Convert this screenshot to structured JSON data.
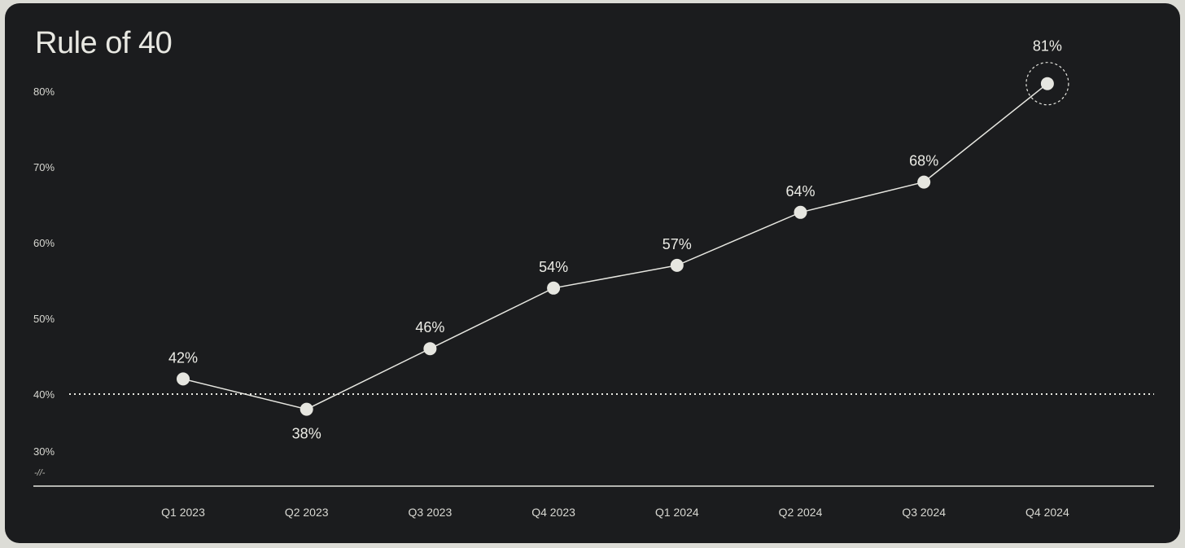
{
  "title": "Rule of 40",
  "chart_data": {
    "type": "line",
    "title": "Rule of 40",
    "xlabel": "",
    "ylabel": "",
    "categories": [
      "Q1 2023",
      "Q2 2023",
      "Q3 2023",
      "Q4 2023",
      "Q1 2024",
      "Q2 2024",
      "Q3 2024",
      "Q4 2024"
    ],
    "values": [
      42,
      38,
      46,
      54,
      57,
      64,
      68,
      81
    ],
    "data_labels": [
      "42%",
      "38%",
      "46%",
      "54%",
      "57%",
      "64%",
      "68%",
      "81%"
    ],
    "y_ticks": [
      "30%",
      "40%",
      "50%",
      "60%",
      "70%",
      "80%"
    ],
    "ylim": [
      30,
      80
    ],
    "axis_break_symbol": "-//-",
    "reference_line": {
      "value": 40,
      "style": "dotted"
    },
    "highlight_point": "Q4 2024",
    "grid": false,
    "legend": "none",
    "colors": {
      "background": "#1b1c1e",
      "page": "#dcdcd6",
      "line": "#e6e6e0",
      "point": "#e6e6e0",
      "text": "#ececE6"
    }
  }
}
